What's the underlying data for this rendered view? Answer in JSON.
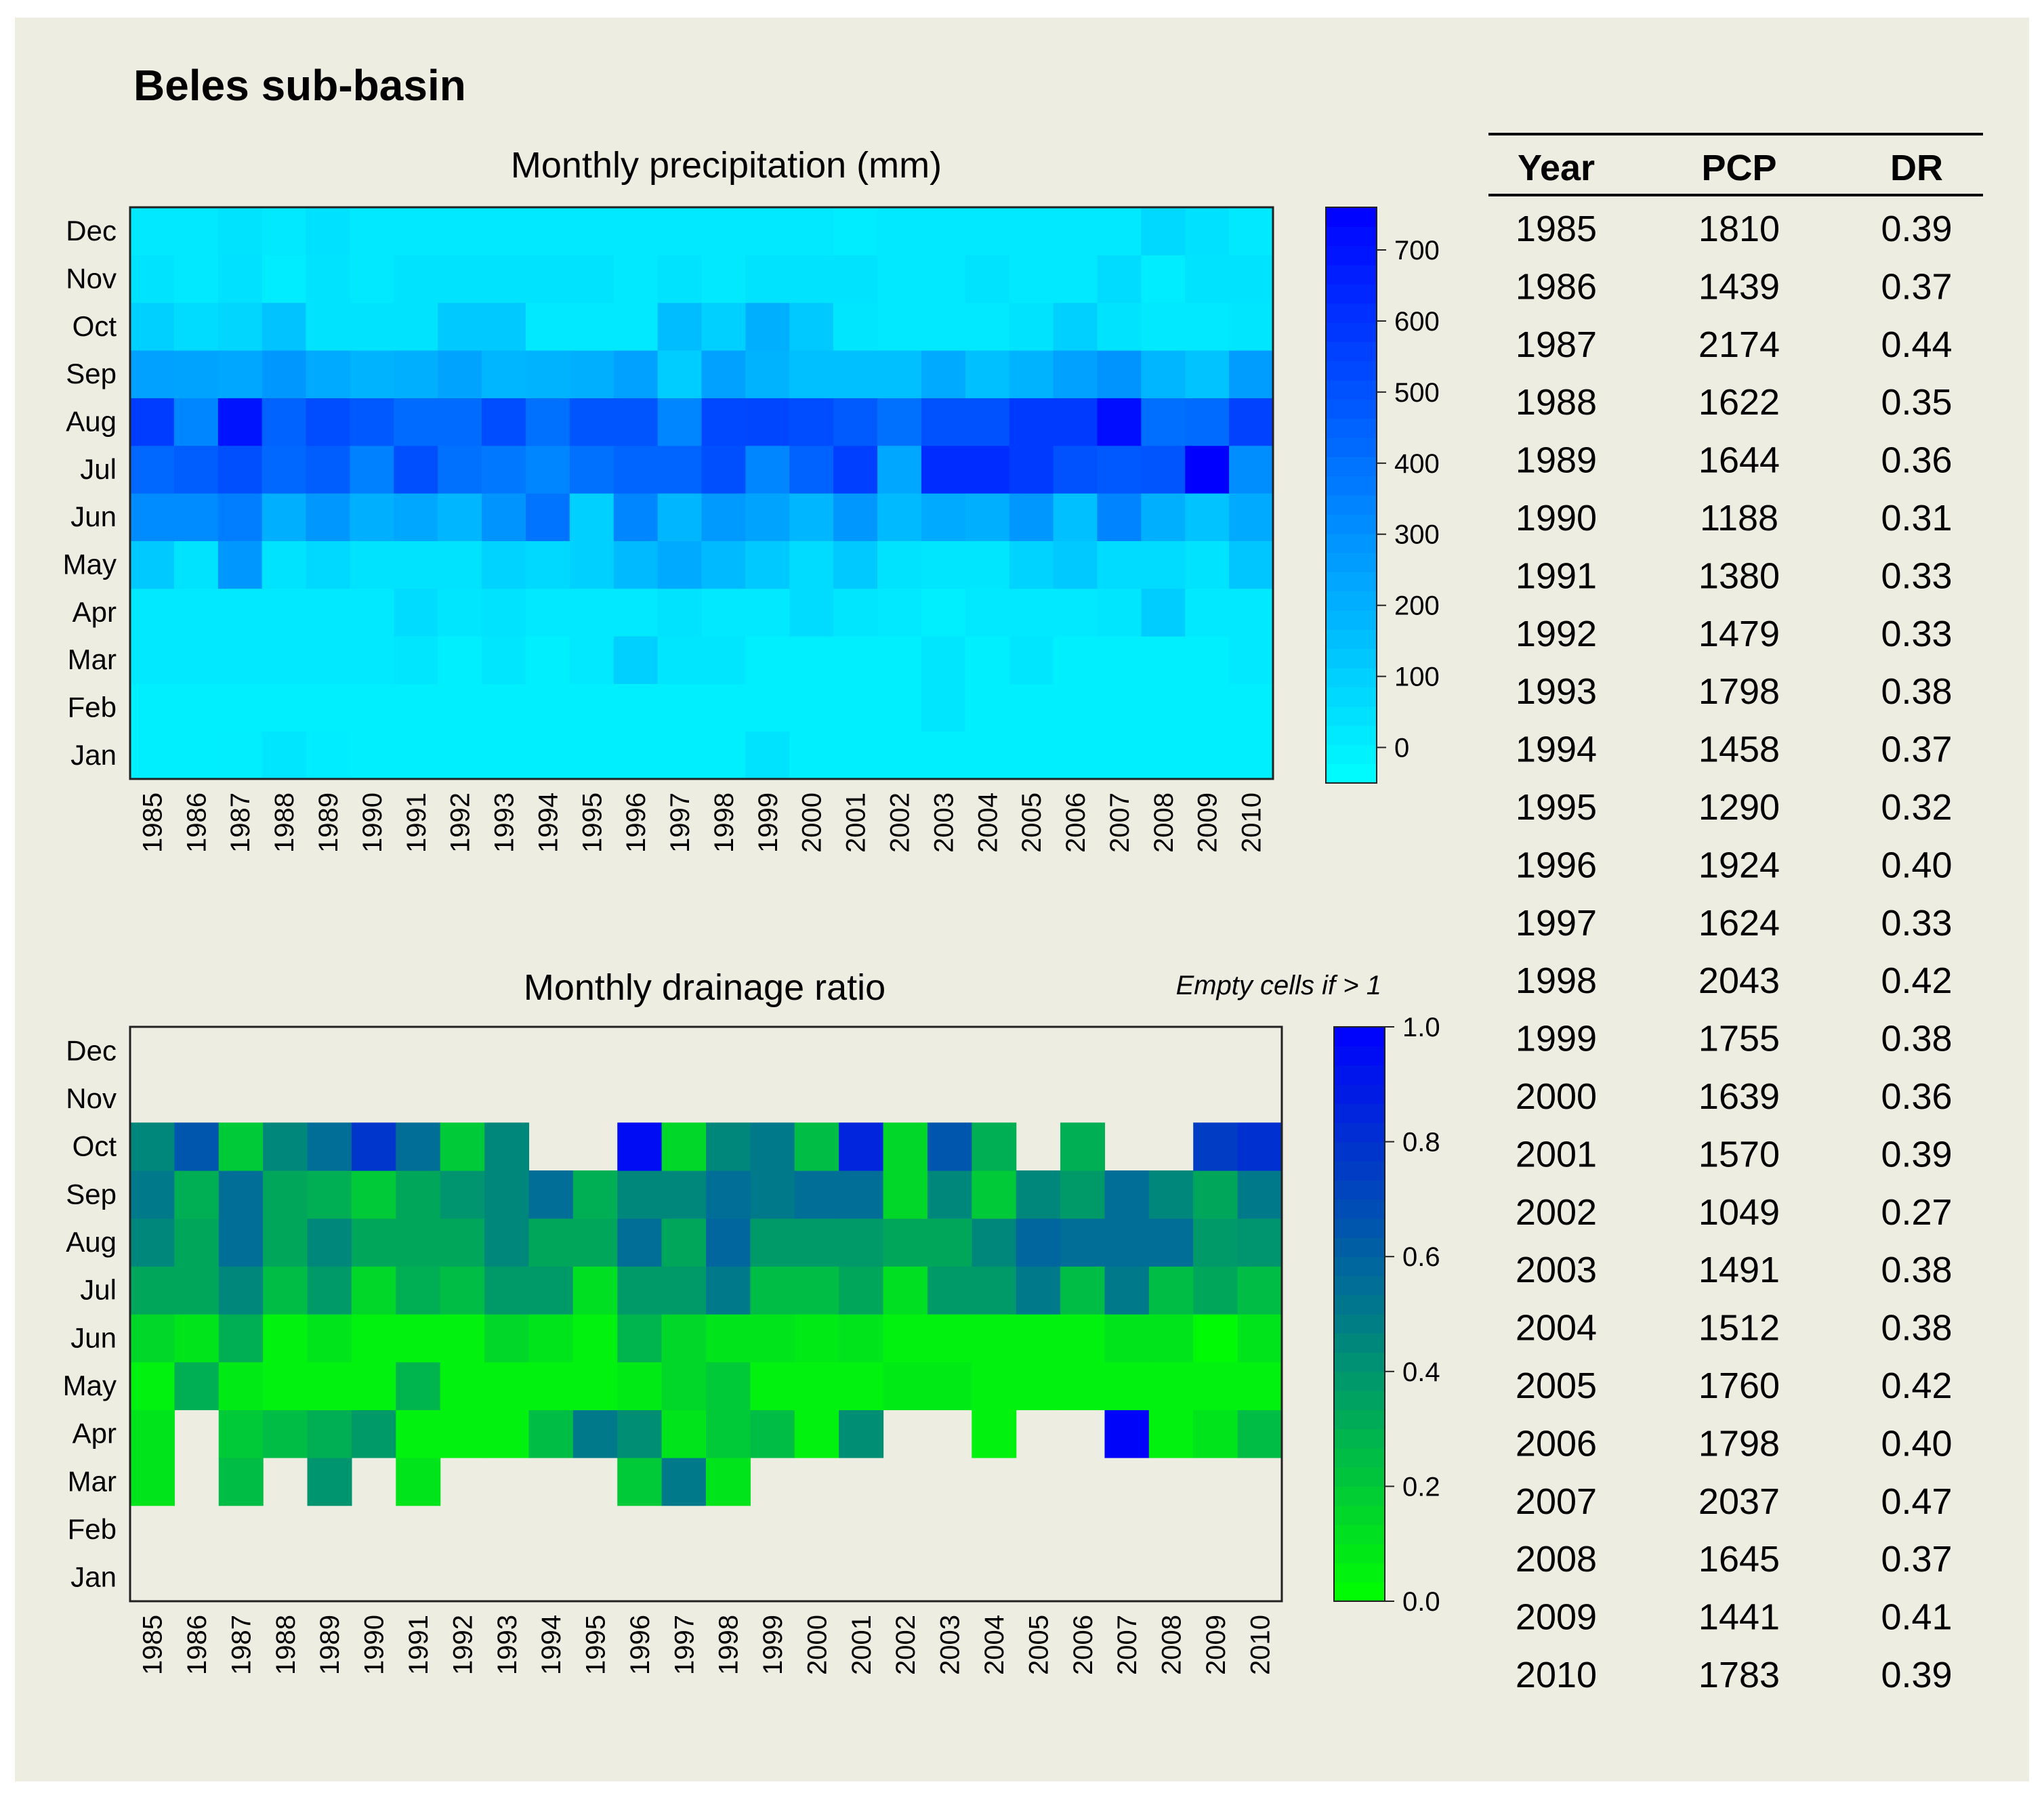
{
  "title": "Beles sub-basin",
  "note": "Empty cells if > 1",
  "colors": {
    "background": "#eeede1",
    "pcp_scale": [
      "#00ffff",
      "#0000ff"
    ],
    "dr_scale": [
      "#00ff00",
      "#007a8a",
      "#0000ff"
    ]
  },
  "chart_data": [
    {
      "type": "heatmap",
      "title": "Monthly precipitation (mm)",
      "x": [
        "1985",
        "1986",
        "1987",
        "1988",
        "1989",
        "1990",
        "1991",
        "1992",
        "1993",
        "1994",
        "1995",
        "1996",
        "1997",
        "1998",
        "1999",
        "2000",
        "2001",
        "2002",
        "2003",
        "2004",
        "2005",
        "2006",
        "2007",
        "2008",
        "2009",
        "2010"
      ],
      "y": [
        "Jan",
        "Feb",
        "Mar",
        "Apr",
        "May",
        "Jun",
        "Jul",
        "Aug",
        "Sep",
        "Oct",
        "Nov",
        "Dec"
      ],
      "scale": {
        "min": -50,
        "max": 760,
        "ticks": [
          0,
          100,
          200,
          300,
          400,
          500,
          600,
          700
        ]
      },
      "values": [
        [
          0,
          0,
          5,
          30,
          10,
          0,
          0,
          0,
          0,
          0,
          0,
          0,
          0,
          0,
          40,
          0,
          0,
          0,
          0,
          0,
          0,
          0,
          0,
          0,
          0,
          0
        ],
        [
          0,
          0,
          0,
          0,
          0,
          0,
          0,
          0,
          0,
          0,
          0,
          0,
          0,
          0,
          0,
          0,
          0,
          0,
          30,
          0,
          0,
          0,
          0,
          0,
          0,
          0
        ],
        [
          20,
          20,
          20,
          20,
          20,
          20,
          30,
          0,
          30,
          0,
          20,
          100,
          30,
          30,
          0,
          0,
          0,
          0,
          30,
          0,
          30,
          0,
          0,
          0,
          0,
          20
        ],
        [
          20,
          20,
          20,
          20,
          20,
          20,
          60,
          30,
          40,
          20,
          20,
          20,
          40,
          20,
          20,
          60,
          30,
          20,
          0,
          20,
          20,
          20,
          30,
          110,
          20,
          20
        ],
        [
          120,
          40,
          280,
          40,
          70,
          40,
          40,
          40,
          90,
          70,
          100,
          170,
          220,
          170,
          120,
          60,
          120,
          40,
          30,
          30,
          90,
          120,
          60,
          60,
          40,
          130
        ],
        [
          320,
          320,
          360,
          200,
          280,
          200,
          230,
          180,
          290,
          390,
          100,
          330,
          180,
          270,
          240,
          180,
          280,
          170,
          220,
          200,
          280,
          150,
          340,
          200,
          140,
          220
        ],
        [
          430,
          460,
          510,
          430,
          460,
          350,
          510,
          400,
          380,
          330,
          400,
          440,
          440,
          510,
          330,
          450,
          560,
          230,
          620,
          620,
          580,
          500,
          480,
          490,
          760,
          310
        ],
        [
          570,
          330,
          700,
          450,
          520,
          480,
          420,
          420,
          520,
          400,
          490,
          490,
          330,
          530,
          540,
          520,
          470,
          400,
          500,
          500,
          580,
          580,
          720,
          410,
          420,
          550
        ],
        [
          250,
          240,
          230,
          280,
          220,
          190,
          200,
          240,
          180,
          190,
          200,
          250,
          110,
          250,
          190,
          150,
          150,
          150,
          220,
          150,
          190,
          250,
          290,
          180,
          140,
          260
        ],
        [
          100,
          60,
          80,
          140,
          40,
          40,
          40,
          120,
          120,
          20,
          20,
          20,
          160,
          100,
          200,
          120,
          30,
          20,
          20,
          20,
          40,
          100,
          40,
          20,
          20,
          30
        ],
        [
          40,
          20,
          50,
          10,
          40,
          20,
          40,
          40,
          40,
          40,
          40,
          20,
          40,
          20,
          40,
          40,
          40,
          20,
          20,
          40,
          20,
          20,
          60,
          10,
          40,
          40
        ],
        [
          20,
          20,
          40,
          20,
          50,
          20,
          20,
          20,
          20,
          20,
          20,
          20,
          20,
          20,
          20,
          20,
          10,
          20,
          20,
          20,
          20,
          20,
          20,
          70,
          50,
          20
        ]
      ]
    },
    {
      "type": "heatmap",
      "title": "Monthly drainage ratio",
      "x": [
        "1985",
        "1986",
        "1987",
        "1988",
        "1989",
        "1990",
        "1991",
        "1992",
        "1993",
        "1994",
        "1995",
        "1996",
        "1997",
        "1998",
        "1999",
        "2000",
        "2001",
        "2002",
        "2003",
        "2004",
        "2005",
        "2006",
        "2007",
        "2008",
        "2009",
        "2010"
      ],
      "y": [
        "Jan",
        "Feb",
        "Mar",
        "Apr",
        "May",
        "Jun",
        "Jul",
        "Aug",
        "Sep",
        "Oct",
        "Nov",
        "Dec"
      ],
      "scale": {
        "min": 0.0,
        "max": 1.0,
        "ticks": [
          0.0,
          0.2,
          0.4,
          0.6,
          0.8,
          1.0
        ]
      },
      "values": [
        [
          null,
          null,
          null,
          null,
          null,
          null,
          null,
          null,
          null,
          null,
          null,
          null,
          null,
          null,
          null,
          null,
          null,
          null,
          null,
          null,
          null,
          null,
          null,
          null,
          null,
          null
        ],
        [
          null,
          null,
          null,
          null,
          null,
          null,
          null,
          null,
          null,
          null,
          null,
          null,
          null,
          null,
          null,
          null,
          null,
          null,
          null,
          null,
          null,
          null,
          null,
          null,
          null,
          null
        ],
        [
          0.1,
          null,
          0.25,
          null,
          0.4,
          null,
          0.1,
          null,
          null,
          null,
          null,
          0.2,
          0.5,
          0.1,
          null,
          null,
          null,
          null,
          null,
          null,
          null,
          null,
          null,
          null,
          null,
          null
        ],
        [
          0.1,
          null,
          0.2,
          0.25,
          0.3,
          0.38,
          0.05,
          0.05,
          0.05,
          0.25,
          0.5,
          0.42,
          0.1,
          0.2,
          0.25,
          0.05,
          0.42,
          null,
          null,
          0.05,
          null,
          null,
          0.98,
          0.05,
          0.1,
          0.25
        ],
        [
          0.05,
          0.3,
          0.08,
          0.05,
          0.05,
          0.05,
          0.28,
          0.05,
          0.05,
          0.05,
          0.05,
          0.08,
          0.15,
          0.2,
          0.05,
          0.05,
          0.05,
          0.08,
          0.08,
          0.05,
          0.05,
          0.05,
          0.05,
          0.05,
          0.05,
          0.05
        ],
        [
          0.15,
          0.1,
          0.3,
          0.05,
          0.1,
          0.05,
          0.05,
          0.05,
          0.15,
          0.1,
          0.05,
          0.28,
          0.15,
          0.1,
          0.1,
          0.08,
          0.1,
          0.05,
          0.05,
          0.05,
          0.05,
          0.05,
          0.1,
          0.1,
          0.02,
          0.1
        ],
        [
          0.33,
          0.33,
          0.45,
          0.25,
          0.38,
          0.15,
          0.3,
          0.25,
          0.38,
          0.38,
          0.12,
          0.38,
          0.38,
          0.5,
          0.25,
          0.25,
          0.33,
          0.12,
          0.38,
          0.38,
          0.5,
          0.25,
          0.5,
          0.25,
          0.33,
          0.25
        ],
        [
          0.45,
          0.33,
          0.55,
          0.33,
          0.45,
          0.33,
          0.33,
          0.33,
          0.45,
          0.33,
          0.33,
          0.55,
          0.33,
          0.58,
          0.38,
          0.38,
          0.38,
          0.33,
          0.33,
          0.45,
          0.58,
          0.55,
          0.55,
          0.55,
          0.38,
          0.4
        ],
        [
          0.5,
          0.3,
          0.55,
          0.33,
          0.3,
          0.2,
          0.33,
          0.4,
          0.45,
          0.55,
          0.3,
          0.45,
          0.45,
          0.55,
          0.5,
          0.55,
          0.55,
          0.15,
          0.45,
          0.2,
          0.45,
          0.38,
          0.55,
          0.45,
          0.33,
          0.5
        ],
        [
          0.45,
          0.65,
          0.2,
          0.45,
          0.55,
          0.78,
          0.55,
          0.2,
          0.45,
          null,
          null,
          0.95,
          0.15,
          0.45,
          0.5,
          0.25,
          0.85,
          0.15,
          0.65,
          0.3,
          null,
          0.3,
          null,
          null,
          0.75,
          0.8
        ],
        [
          null,
          null,
          null,
          null,
          null,
          null,
          null,
          null,
          null,
          null,
          null,
          null,
          null,
          null,
          null,
          null,
          null,
          null,
          null,
          null,
          null,
          null,
          null,
          null,
          null,
          null
        ],
        [
          null,
          null,
          null,
          null,
          null,
          null,
          null,
          null,
          null,
          null,
          null,
          null,
          null,
          null,
          null,
          null,
          null,
          null,
          null,
          null,
          null,
          null,
          null,
          null,
          null,
          null
        ]
      ]
    },
    {
      "type": "table",
      "columns": [
        "Year",
        "PCP",
        "DR"
      ],
      "rows": [
        [
          "1985",
          "1810",
          "0.39"
        ],
        [
          "1986",
          "1439",
          "0.37"
        ],
        [
          "1987",
          "2174",
          "0.44"
        ],
        [
          "1988",
          "1622",
          "0.35"
        ],
        [
          "1989",
          "1644",
          "0.36"
        ],
        [
          "1990",
          "1188",
          "0.31"
        ],
        [
          "1991",
          "1380",
          "0.33"
        ],
        [
          "1992",
          "1479",
          "0.33"
        ],
        [
          "1993",
          "1798",
          "0.38"
        ],
        [
          "1994",
          "1458",
          "0.37"
        ],
        [
          "1995",
          "1290",
          "0.32"
        ],
        [
          "1996",
          "1924",
          "0.40"
        ],
        [
          "1997",
          "1624",
          "0.33"
        ],
        [
          "1998",
          "2043",
          "0.42"
        ],
        [
          "1999",
          "1755",
          "0.38"
        ],
        [
          "2000",
          "1639",
          "0.36"
        ],
        [
          "2001",
          "1570",
          "0.39"
        ],
        [
          "2002",
          "1049",
          "0.27"
        ],
        [
          "2003",
          "1491",
          "0.38"
        ],
        [
          "2004",
          "1512",
          "0.38"
        ],
        [
          "2005",
          "1760",
          "0.42"
        ],
        [
          "2006",
          "1798",
          "0.40"
        ],
        [
          "2007",
          "2037",
          "0.47"
        ],
        [
          "2008",
          "1645",
          "0.37"
        ],
        [
          "2009",
          "1441",
          "0.41"
        ],
        [
          "2010",
          "1783",
          "0.39"
        ]
      ]
    }
  ]
}
